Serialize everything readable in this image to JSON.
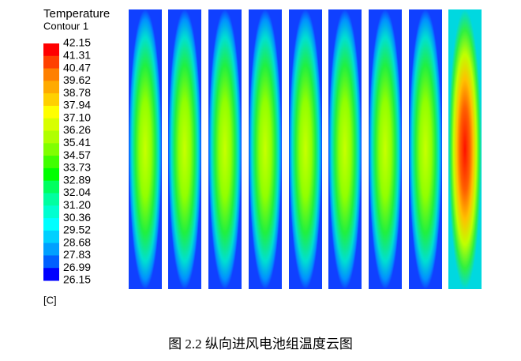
{
  "legend": {
    "title": "Temperature",
    "subtitle": "Contour 1",
    "levels": [
      "42.15",
      "41.31",
      "40.47",
      "39.62",
      "38.78",
      "37.94",
      "37.10",
      "36.26",
      "35.41",
      "34.57",
      "33.73",
      "32.89",
      "32.04",
      "31.20",
      "30.36",
      "29.52",
      "28.68",
      "27.83",
      "26.99",
      "26.15"
    ],
    "unit": "[C]"
  },
  "caption": "图 2.2  纵向进风电池组温度云图"
}
